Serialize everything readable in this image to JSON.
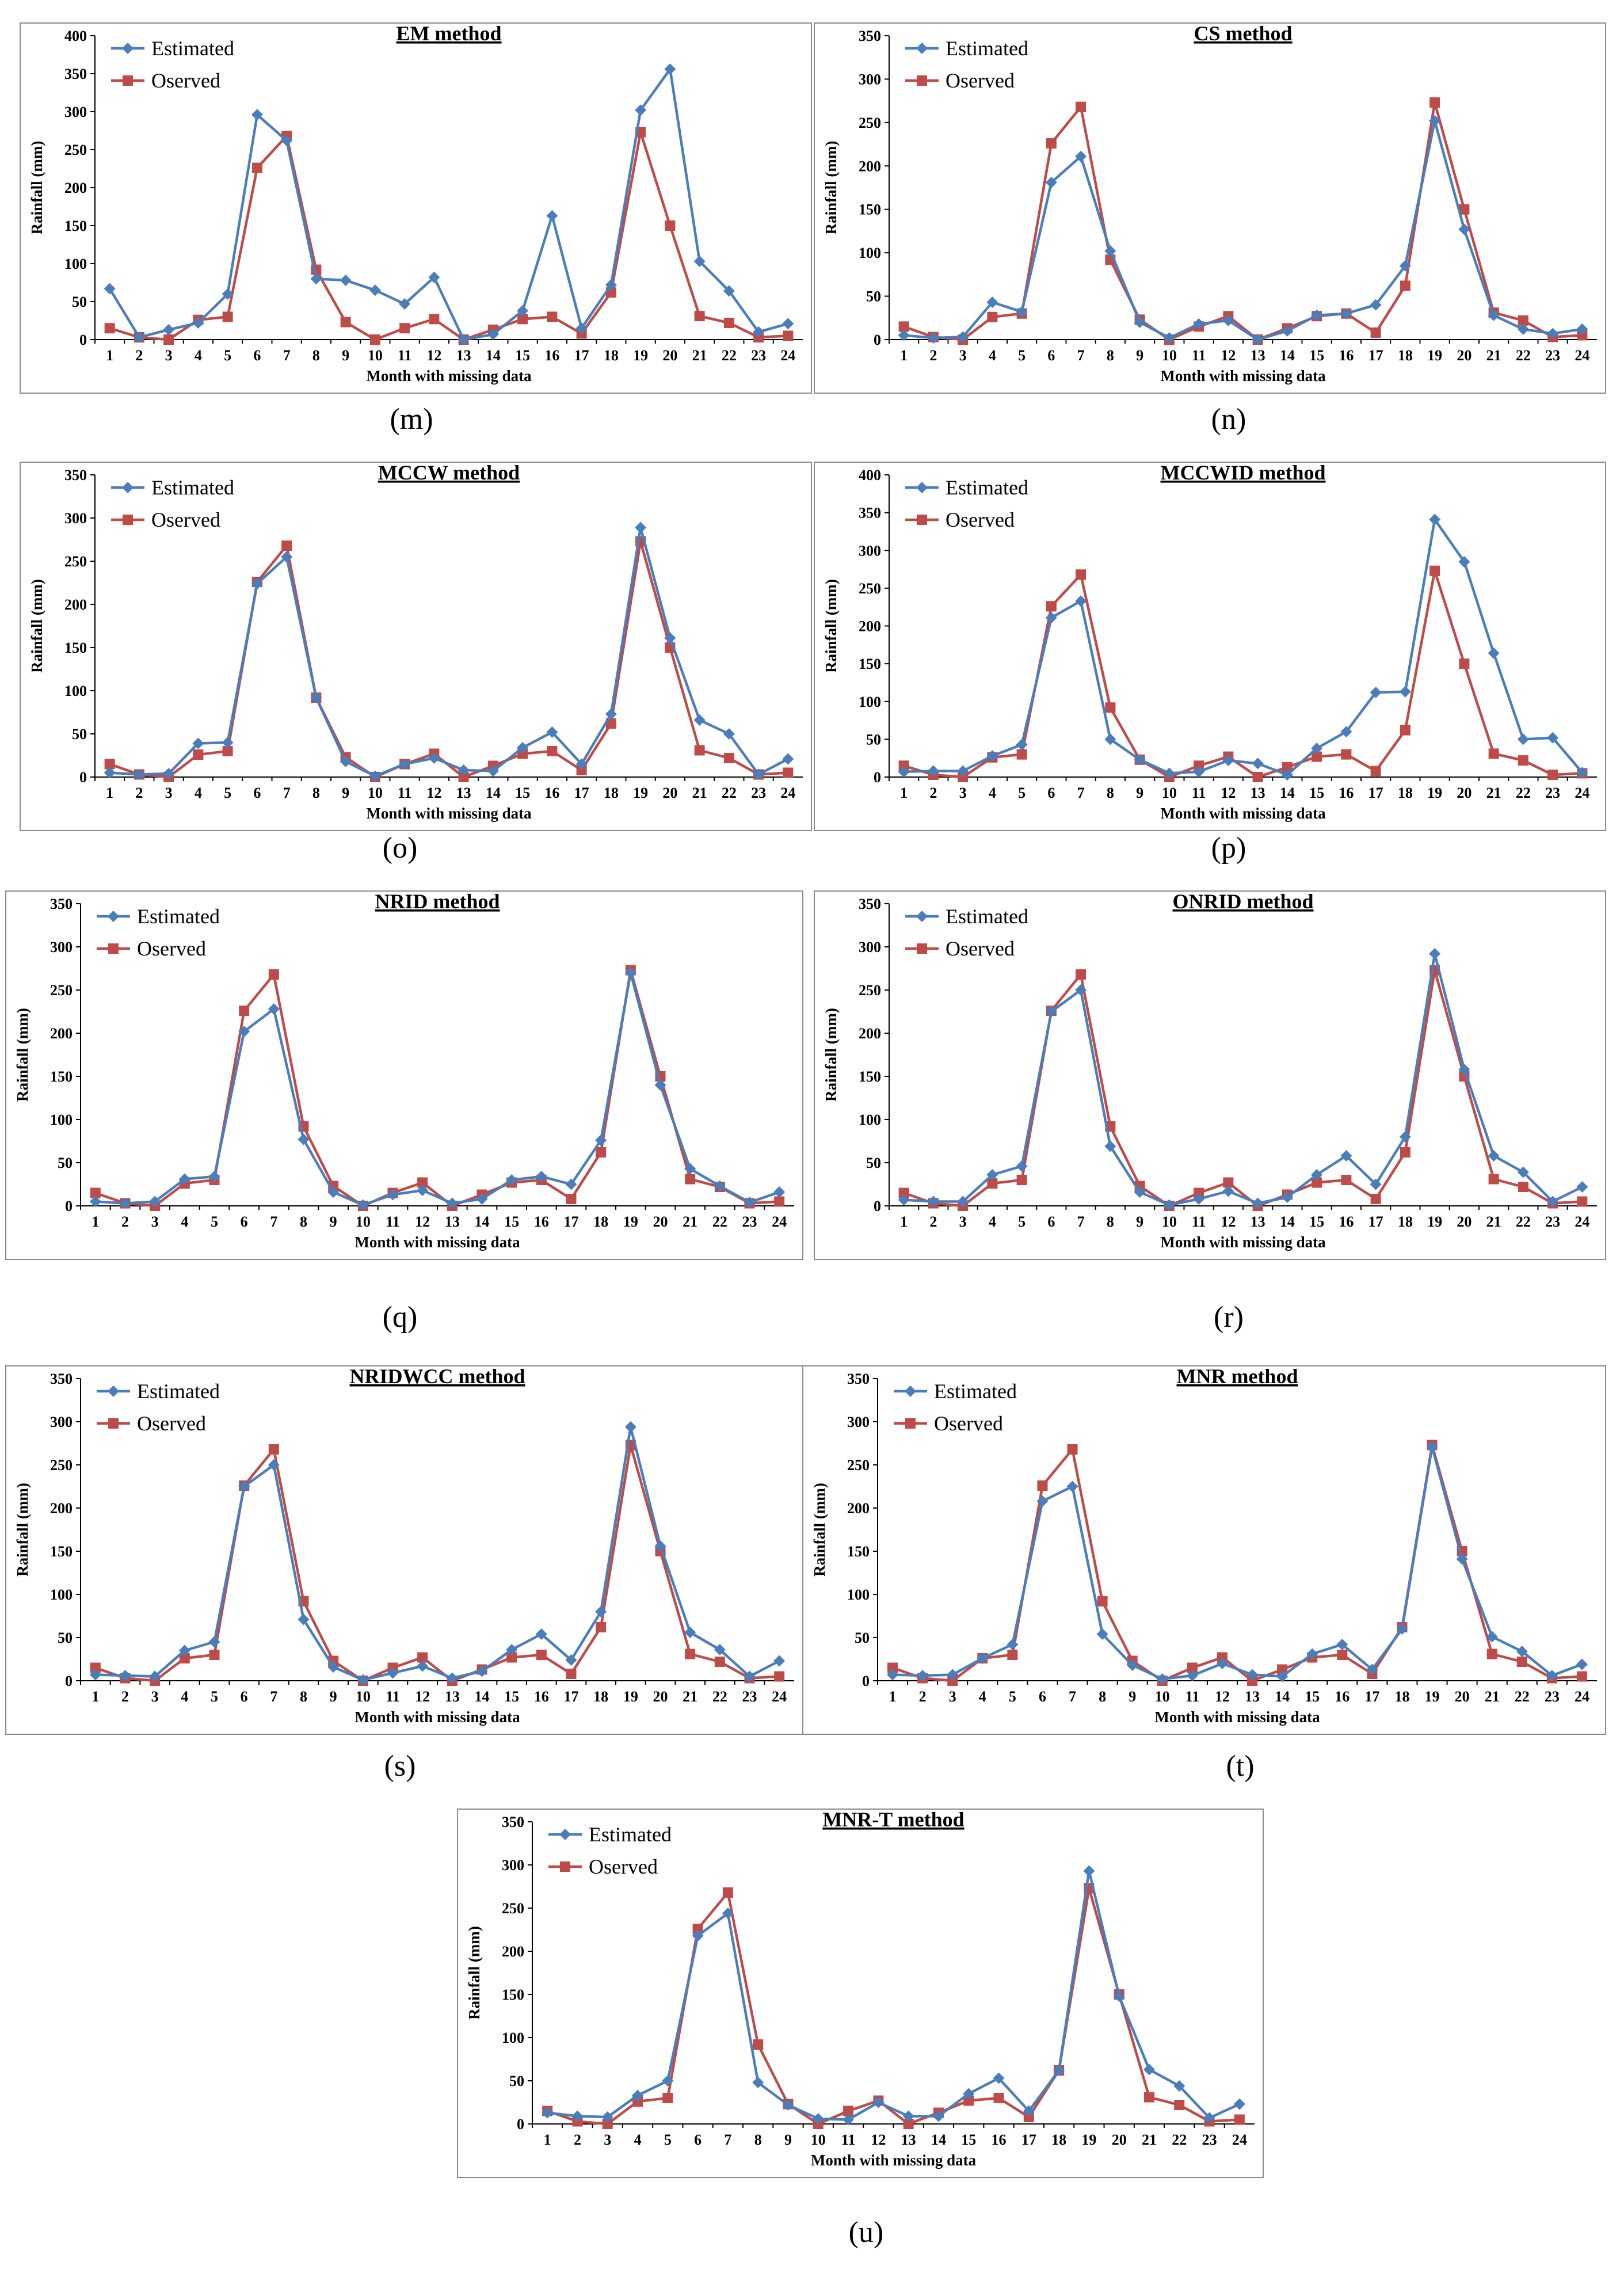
{
  "colors": {
    "estimated": "#4A7EBB",
    "observed": "#BE4B48",
    "frame": "#8a8a8a"
  },
  "legend": {
    "estimated": "Estimated",
    "observed": "Oserved"
  },
  "months": [
    1,
    2,
    3,
    4,
    5,
    6,
    7,
    8,
    9,
    10,
    11,
    12,
    13,
    14,
    15,
    16,
    17,
    18,
    19,
    20,
    21,
    22,
    23,
    24
  ],
  "chart_data": [
    {
      "type": "line",
      "caption": "(m)",
      "title": "EM method",
      "xlabel": "Month with missing data",
      "ylabel": "Rainfall (mm)",
      "ylim": [
        0,
        400
      ],
      "yticks": [
        0,
        50,
        100,
        150,
        200,
        250,
        300,
        350,
        400
      ],
      "legend_position": "top-left",
      "grid": false,
      "series": [
        {
          "name": "Estimated",
          "values": [
            67,
            3,
            13,
            22,
            60,
            296,
            262,
            80,
            78,
            65,
            47,
            82,
            0,
            7,
            38,
            163,
            15,
            72,
            302,
            356,
            103,
            64,
            10,
            21
          ]
        },
        {
          "name": "Oserved",
          "values": [
            15,
            3,
            0,
            26,
            30,
            226,
            268,
            92,
            23,
            0,
            15,
            27,
            0,
            13,
            27,
            30,
            8,
            62,
            273,
            150,
            31,
            22,
            3,
            5
          ]
        }
      ]
    },
    {
      "type": "line",
      "caption": "(n)",
      "title": "CS method",
      "xlabel": "Month with missing data",
      "ylabel": "Rainfall (mm)",
      "ylim": [
        0,
        350
      ],
      "yticks": [
        0,
        50,
        100,
        150,
        200,
        250,
        300,
        350
      ],
      "legend_position": "top-left",
      "grid": false,
      "series": [
        {
          "name": "Estimated",
          "values": [
            5,
            2,
            3,
            43,
            32,
            181,
            211,
            102,
            20,
            2,
            18,
            22,
            0,
            10,
            28,
            30,
            40,
            85,
            252,
            127,
            28,
            12,
            7,
            12
          ]
        },
        {
          "name": "Oserved",
          "values": [
            15,
            3,
            0,
            26,
            30,
            226,
            268,
            92,
            23,
            0,
            15,
            27,
            0,
            13,
            27,
            30,
            8,
            62,
            273,
            150,
            31,
            22,
            3,
            5
          ]
        }
      ]
    },
    {
      "type": "line",
      "caption": "(o)",
      "title": "MCCW method",
      "xlabel": "Month with missing data",
      "ylabel": "Rainfall (mm)",
      "ylim": [
        0,
        350
      ],
      "yticks": [
        0,
        50,
        100,
        150,
        200,
        250,
        300,
        350
      ],
      "legend_position": "top-left",
      "grid": false,
      "series": [
        {
          "name": "Estimated",
          "values": [
            5,
            3,
            4,
            39,
            40,
            224,
            255,
            92,
            18,
            1,
            15,
            22,
            8,
            7,
            34,
            52,
            15,
            73,
            289,
            161,
            66,
            50,
            3,
            21
          ]
        },
        {
          "name": "Oserved",
          "values": [
            15,
            3,
            0,
            26,
            30,
            226,
            268,
            92,
            23,
            0,
            15,
            27,
            0,
            13,
            27,
            30,
            8,
            62,
            273,
            150,
            31,
            22,
            3,
            5
          ]
        }
      ]
    },
    {
      "type": "line",
      "caption": "(p)",
      "title": "MCCWID method",
      "xlabel": "Month with missing data",
      "ylabel": "Rainfall (mm)",
      "ylim": [
        0,
        400
      ],
      "yticks": [
        0,
        50,
        100,
        150,
        200,
        250,
        300,
        350,
        400
      ],
      "legend_position": "top-left",
      "grid": false,
      "series": [
        {
          "name": "Estimated",
          "values": [
            7,
            8,
            8,
            28,
            43,
            211,
            233,
            50,
            23,
            5,
            7,
            22,
            18,
            3,
            38,
            60,
            112,
            113,
            341,
            285,
            164,
            50,
            52,
            6
          ]
        },
        {
          "name": "Oserved",
          "values": [
            15,
            3,
            0,
            26,
            30,
            226,
            268,
            92,
            23,
            0,
            15,
            27,
            0,
            13,
            27,
            30,
            8,
            62,
            273,
            150,
            31,
            22,
            3,
            5
          ]
        }
      ]
    },
    {
      "type": "line",
      "caption": "(q)",
      "title": "NRID method",
      "xlabel": "Month with missing data",
      "ylabel": "Rainfall (mm)",
      "ylim": [
        0,
        350
      ],
      "yticks": [
        0,
        50,
        100,
        150,
        200,
        250,
        300,
        350
      ],
      "legend_position": "top-left",
      "grid": false,
      "series": [
        {
          "name": "Estimated",
          "values": [
            5,
            3,
            5,
            31,
            34,
            202,
            228,
            77,
            16,
            1,
            13,
            18,
            3,
            8,
            30,
            34,
            25,
            76,
            270,
            140,
            43,
            23,
            4,
            16
          ]
        },
        {
          "name": "Oserved",
          "values": [
            15,
            3,
            0,
            26,
            30,
            226,
            268,
            92,
            23,
            0,
            15,
            27,
            0,
            13,
            27,
            30,
            8,
            62,
            273,
            150,
            31,
            22,
            3,
            5
          ]
        }
      ]
    },
    {
      "type": "line",
      "caption": "(r)",
      "title": "ONRID method",
      "xlabel": "Month with missing data",
      "ylabel": "Rainfall (mm)",
      "ylim": [
        0,
        350
      ],
      "yticks": [
        0,
        50,
        100,
        150,
        200,
        250,
        300,
        350
      ],
      "legend_position": "top-left",
      "grid": false,
      "series": [
        {
          "name": "Estimated",
          "values": [
            7,
            5,
            5,
            36,
            46,
            225,
            250,
            69,
            16,
            1,
            8,
            17,
            3,
            10,
            36,
            58,
            25,
            80,
            292,
            158,
            58,
            39,
            5,
            22
          ]
        },
        {
          "name": "Oserved",
          "values": [
            15,
            3,
            0,
            26,
            30,
            226,
            268,
            92,
            23,
            0,
            15,
            27,
            0,
            13,
            27,
            30,
            8,
            62,
            273,
            150,
            31,
            22,
            3,
            5
          ]
        }
      ]
    },
    {
      "type": "line",
      "caption": "(s)",
      "title": "NRIDWCC method",
      "xlabel": "Month with missing data",
      "ylabel": "Rainfall (mm)",
      "ylim": [
        0,
        350
      ],
      "yticks": [
        0,
        50,
        100,
        150,
        200,
        250,
        300,
        350
      ],
      "legend_position": "top-left",
      "grid": false,
      "series": [
        {
          "name": "Estimated",
          "values": [
            7,
            6,
            5,
            35,
            45,
            225,
            250,
            71,
            16,
            1,
            9,
            17,
            3,
            11,
            36,
            54,
            24,
            80,
            294,
            156,
            56,
            36,
            5,
            23
          ]
        },
        {
          "name": "Oserved",
          "values": [
            15,
            3,
            0,
            26,
            30,
            226,
            268,
            92,
            23,
            0,
            15,
            27,
            0,
            13,
            27,
            30,
            8,
            62,
            273,
            150,
            31,
            22,
            3,
            5
          ]
        }
      ]
    },
    {
      "type": "line",
      "caption": "(t)",
      "title": "MNR method",
      "xlabel": "Month with missing data",
      "ylabel": "Rainfall (mm)",
      "ylim": [
        0,
        350
      ],
      "yticks": [
        0,
        50,
        100,
        150,
        200,
        250,
        300,
        350
      ],
      "legend_position": "top-left",
      "grid": false,
      "series": [
        {
          "name": "Estimated",
          "values": [
            7,
            6,
            7,
            26,
            42,
            208,
            225,
            54,
            18,
            2,
            6,
            20,
            7,
            5,
            31,
            42,
            13,
            60,
            271,
            141,
            51,
            34,
            6,
            19
          ]
        },
        {
          "name": "Oserved",
          "values": [
            15,
            3,
            0,
            26,
            30,
            226,
            268,
            92,
            23,
            0,
            15,
            27,
            0,
            13,
            27,
            30,
            8,
            62,
            273,
            150,
            31,
            22,
            3,
            5
          ]
        }
      ]
    },
    {
      "type": "line",
      "caption": "(u)",
      "title": "MNR-T method",
      "xlabel": "Month with missing data",
      "ylabel": "Rainfall (mm)",
      "ylim": [
        0,
        350
      ],
      "yticks": [
        0,
        50,
        100,
        150,
        200,
        250,
        300,
        350
      ],
      "legend_position": "top-left",
      "grid": false,
      "series": [
        {
          "name": "Estimated",
          "values": [
            13,
            9,
            8,
            33,
            50,
            218,
            244,
            48,
            22,
            6,
            5,
            25,
            9,
            9,
            35,
            53,
            15,
            62,
            293,
            148,
            63,
            44,
            7,
            23
          ]
        },
        {
          "name": "Oserved",
          "values": [
            15,
            3,
            0,
            26,
            30,
            226,
            268,
            92,
            23,
            0,
            15,
            27,
            0,
            13,
            27,
            30,
            8,
            62,
            273,
            150,
            31,
            22,
            3,
            5
          ]
        }
      ]
    }
  ]
}
